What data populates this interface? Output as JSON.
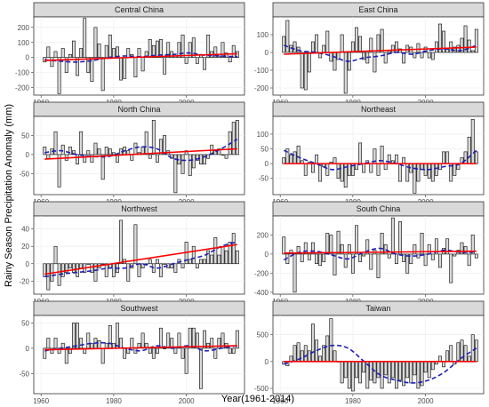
{
  "figure": {
    "xlabel": "Year(1961-2014)",
    "ylabel": "Rainy Season Precipitation Anomaly (mm)",
    "colors": {
      "bar_fill": "#d9d9d9",
      "bar_stroke": "#000000",
      "trend": "#ff0000",
      "smooth": "#1f1fb8",
      "strip": "#d9d9d9"
    }
  },
  "chart_data": [
    {
      "type": "bar",
      "title": "Central China",
      "x_start": 1961,
      "xlim": [
        1958,
        2016
      ],
      "xticks": [
        1960,
        1980,
        2000
      ],
      "ylim": [
        -250,
        270
      ],
      "yticks": [
        -200,
        -100,
        0,
        100,
        200
      ],
      "values": [
        -30,
        70,
        -60,
        40,
        -240,
        60,
        -100,
        20,
        110,
        -120,
        60,
        260,
        -100,
        -160,
        200,
        90,
        -220,
        80,
        150,
        60,
        70,
        -150,
        -140,
        60,
        20,
        -130,
        60,
        -90,
        40,
        120,
        80,
        110,
        120,
        -110,
        100,
        40,
        10,
        100,
        150,
        -40,
        100,
        130,
        -40,
        20,
        -80,
        150,
        40,
        70,
        10,
        100,
        30,
        -30,
        80,
        40
      ],
      "trend": [
        -20,
        25
      ],
      "smooth": [
        -15,
        -25,
        -30,
        -20,
        0,
        10,
        5,
        15,
        20,
        30,
        15,
        10,
        5
      ]
    },
    {
      "type": "bar",
      "title": "East China",
      "x_start": 1961,
      "xlim": [
        1958,
        2016
      ],
      "xticks": [
        1960,
        1980,
        2000
      ],
      "ylim": [
        -240,
        200
      ],
      "yticks": [
        -200,
        -100,
        0,
        100
      ],
      "values": [
        90,
        180,
        40,
        60,
        30,
        -200,
        -210,
        -110,
        60,
        100,
        -30,
        40,
        120,
        -50,
        -100,
        -40,
        100,
        -230,
        -100,
        60,
        140,
        90,
        -40,
        -60,
        80,
        -110,
        100,
        130,
        -60,
        10,
        40,
        60,
        20,
        -60,
        40,
        30,
        -30,
        50,
        -30,
        30,
        -30,
        -40,
        60,
        160,
        120,
        20,
        60,
        30,
        40,
        80,
        150,
        70,
        10,
        130
      ],
      "trend": [
        -10,
        30
      ],
      "smooth": [
        40,
        10,
        0,
        -20,
        -50,
        -30,
        -20,
        0,
        -10,
        10,
        20,
        10,
        40
      ]
    },
    {
      "type": "bar",
      "title": "North China",
      "x_start": 1961,
      "xlim": [
        1958,
        2016
      ],
      "xticks": [
        1960,
        1980,
        2000
      ],
      "ylim": [
        -105,
        100
      ],
      "yticks": [
        -50,
        0,
        50
      ],
      "values": [
        20,
        -10,
        15,
        60,
        -85,
        25,
        -15,
        20,
        10,
        -25,
        60,
        -20,
        10,
        -20,
        30,
        15,
        -65,
        20,
        15,
        5,
        -20,
        15,
        20,
        10,
        -15,
        30,
        5,
        20,
        60,
        -10,
        90,
        -20,
        40,
        50,
        10,
        -10,
        -100,
        -25,
        -50,
        10,
        -55,
        -35,
        -15,
        -25,
        -25,
        -10,
        25,
        10,
        15,
        0,
        -10,
        60,
        85,
        90
      ],
      "trend": [
        -12,
        15
      ],
      "smooth": [
        5,
        10,
        0,
        -5,
        -5,
        10,
        20,
        15,
        -10,
        -15,
        -5,
        15,
        40
      ]
    },
    {
      "type": "bar",
      "title": "Northeast",
      "x_start": 1961,
      "xlim": [
        1958,
        2016
      ],
      "xticks": [
        1960,
        1980,
        2000
      ],
      "ylim": [
        -105,
        160
      ],
      "yticks": [
        -50,
        0,
        50,
        100
      ],
      "values": [
        20,
        50,
        30,
        40,
        60,
        10,
        -40,
        5,
        -30,
        30,
        -60,
        -10,
        -40,
        5,
        20,
        -50,
        -60,
        -80,
        -40,
        -40,
        -20,
        70,
        -30,
        10,
        -30,
        50,
        -40,
        60,
        -20,
        30,
        10,
        30,
        -60,
        20,
        -60,
        -30,
        -100,
        -60,
        -20,
        -40,
        -50,
        -60,
        -40,
        -20,
        40,
        40,
        -60,
        -40,
        -20,
        20,
        40,
        90,
        150,
        40
      ],
      "trend": [
        0,
        0
      ],
      "smooth": [
        45,
        20,
        0,
        -20,
        -10,
        0,
        10,
        0,
        -15,
        -20,
        -10,
        0,
        45
      ]
    },
    {
      "type": "bar",
      "title": "Northwest",
      "x_start": 1961,
      "xlim": [
        1958,
        2016
      ],
      "xticks": [
        1960,
        1980,
        2000
      ],
      "ylim": [
        -35,
        55
      ],
      "yticks": [
        -20,
        0,
        20,
        40
      ],
      "values": [
        -15,
        -30,
        -20,
        20,
        -25,
        -15,
        -10,
        -5,
        -10,
        -15,
        -5,
        -10,
        0,
        -10,
        -20,
        -5,
        0,
        -15,
        -5,
        -15,
        -10,
        50,
        5,
        -20,
        -5,
        45,
        -15,
        -5,
        0,
        5,
        -10,
        5,
        -15,
        0,
        -5,
        -5,
        -10,
        5,
        -5,
        25,
        5,
        20,
        -5,
        5,
        5,
        15,
        10,
        30,
        10,
        20,
        15,
        25,
        35,
        15
      ],
      "trend": [
        -12,
        22
      ],
      "smooth": [
        -15,
        -12,
        -10,
        -8,
        -5,
        -5,
        0,
        -5,
        0,
        5,
        10,
        20,
        25
      ]
    },
    {
      "type": "bar",
      "title": "South China",
      "x_start": 1961,
      "xlim": [
        1958,
        2016
      ],
      "xticks": [
        1960,
        1980,
        2000
      ],
      "ylim": [
        -420,
        400
      ],
      "yticks": [
        -400,
        -200,
        0,
        200
      ],
      "values": [
        180,
        -100,
        40,
        -400,
        80,
        -80,
        120,
        -60,
        120,
        -100,
        -120,
        -80,
        220,
        200,
        -220,
        240,
        100,
        -140,
        100,
        -200,
        300,
        -80,
        -20,
        150,
        -160,
        40,
        -250,
        220,
        100,
        -40,
        380,
        -100,
        340,
        -80,
        -200,
        -100,
        100,
        -40,
        220,
        -120,
        100,
        -60,
        160,
        -140,
        60,
        160,
        -300,
        -20,
        40,
        120,
        80,
        -120,
        200,
        -40
      ],
      "trend": [
        10,
        30
      ],
      "smooth": [
        -60,
        20,
        30,
        -10,
        -50,
        20,
        60,
        0,
        -20,
        0,
        40,
        20,
        20
      ]
    },
    {
      "type": "bar",
      "title": "Southwest",
      "x_start": 1961,
      "xlim": [
        1958,
        2016
      ],
      "xticks": [
        1960,
        1980,
        2000
      ],
      "ylim": [
        -90,
        65
      ],
      "yticks": [
        -50,
        0,
        50
      ],
      "values": [
        -20,
        20,
        -10,
        20,
        -10,
        10,
        -30,
        -10,
        50,
        50,
        20,
        -10,
        30,
        10,
        20,
        15,
        -30,
        10,
        45,
        10,
        50,
        20,
        -20,
        -10,
        20,
        -10,
        10,
        30,
        10,
        -10,
        -20,
        -10,
        40,
        0,
        30,
        20,
        -10,
        30,
        -20,
        -50,
        40,
        40,
        30,
        -80,
        35,
        10,
        20,
        -20,
        20,
        30,
        10,
        -10,
        -10,
        35
      ],
      "trend": [
        -3,
        5
      ],
      "smooth": [
        -5,
        0,
        5,
        10,
        10,
        0,
        -5,
        5,
        0,
        5,
        -5,
        0,
        5
      ]
    },
    {
      "type": "bar",
      "title": "Taiwan",
      "x_start": 1961,
      "xlim": [
        1958,
        2016
      ],
      "xticks": [
        1960,
        1980,
        2000
      ],
      "ylim": [
        -600,
        860
      ],
      "yticks": [
        -500,
        0,
        500
      ],
      "values": [
        -50,
        -80,
        100,
        300,
        350,
        200,
        300,
        200,
        700,
        400,
        100,
        300,
        480,
        800,
        200,
        0,
        -400,
        -300,
        -500,
        -550,
        -300,
        -400,
        -200,
        -500,
        -350,
        -400,
        -300,
        -500,
        -250,
        -400,
        -300,
        -500,
        -350,
        -450,
        -300,
        -400,
        -250,
        -500,
        -450,
        -200,
        -300,
        -150,
        -50,
        100,
        -100,
        200,
        300,
        -50,
        350,
        400,
        300,
        100,
        500,
        400
      ],
      "trend": [
        0,
        0
      ],
      "smooth": [
        -50,
        50,
        200,
        300,
        250,
        0,
        -250,
        -350,
        -400,
        -350,
        -200,
        50,
        250
      ]
    }
  ]
}
